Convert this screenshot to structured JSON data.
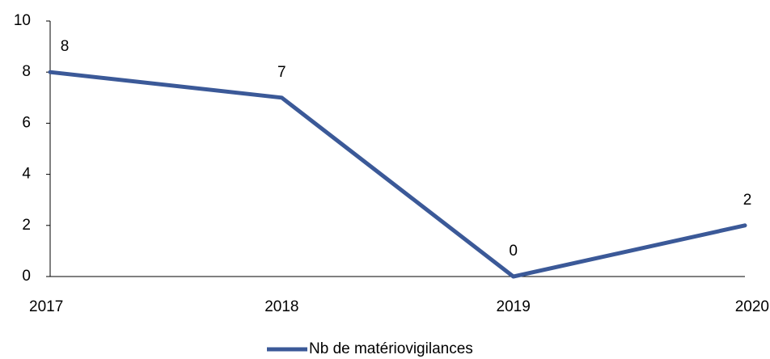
{
  "chart_data": {
    "type": "line",
    "categories": [
      "2017",
      "2018",
      "2019",
      "2020"
    ],
    "series": [
      {
        "name": "Nb de matériovigilances",
        "color": "#3b5998",
        "values": [
          8,
          7,
          0,
          2
        ]
      }
    ],
    "ylim": [
      0,
      10
    ],
    "yticks": [
      0,
      2,
      4,
      6,
      8,
      10
    ],
    "grid": false,
    "legend": "bottom"
  }
}
